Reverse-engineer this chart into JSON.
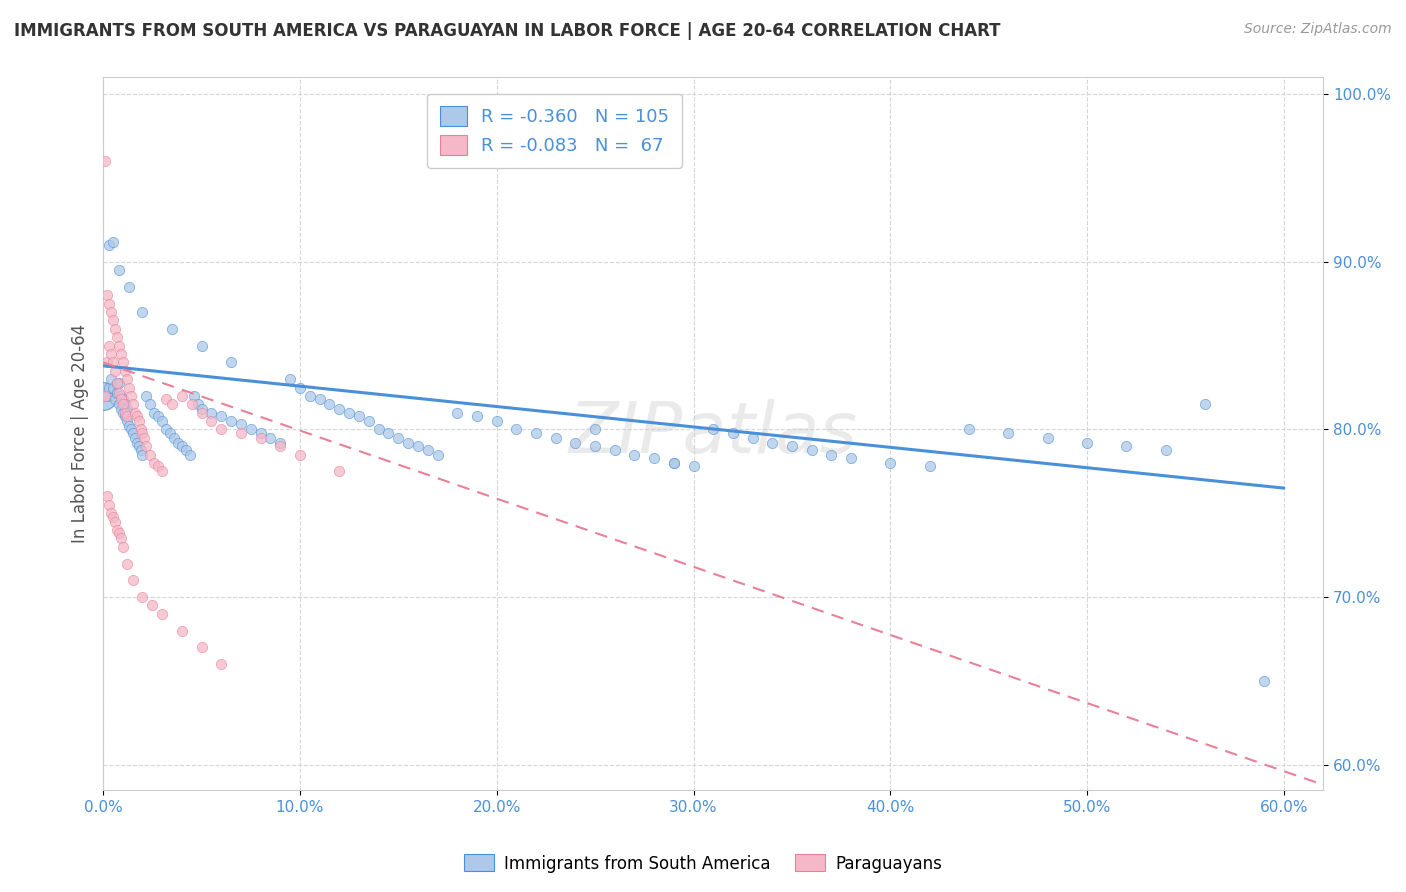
{
  "title": "IMMIGRANTS FROM SOUTH AMERICA VS PARAGUAYAN IN LABOR FORCE | AGE 20-64 CORRELATION CHART",
  "source": "Source: ZipAtlas.com",
  "ylabel": "In Labor Force | Age 20-64",
  "xlim": [
    0.0,
    0.62
  ],
  "ylim": [
    0.585,
    1.01
  ],
  "xticks": [
    0.0,
    0.1,
    0.2,
    0.3,
    0.4,
    0.5,
    0.6
  ],
  "xticklabels": [
    "0.0%",
    "10.0%",
    "20.0%",
    "30.0%",
    "40.0%",
    "50.0%",
    "60.0%"
  ],
  "yticks": [
    0.6,
    0.7,
    0.8,
    0.9,
    1.0
  ],
  "yticklabels": [
    "60.0%",
    "70.0%",
    "80.0%",
    "90.0%",
    "100.0%"
  ],
  "legend_labels": [
    "Immigrants from South America",
    "Paraguayans"
  ],
  "blue_color": "#adc8e8",
  "pink_color": "#f4b8c8",
  "blue_line_color": "#4a90d9",
  "pink_line_color": "#e88098",
  "title_color": "#333333",
  "grid_color": "#cccccc",
  "watermark_color": "#cccccc",
  "blue_scatter_x": [
    0.002,
    0.003,
    0.004,
    0.005,
    0.006,
    0.007,
    0.007,
    0.008,
    0.008,
    0.009,
    0.009,
    0.01,
    0.01,
    0.011,
    0.011,
    0.012,
    0.012,
    0.013,
    0.014,
    0.015,
    0.016,
    0.017,
    0.018,
    0.019,
    0.02,
    0.022,
    0.024,
    0.026,
    0.028,
    0.03,
    0.032,
    0.034,
    0.036,
    0.038,
    0.04,
    0.042,
    0.044,
    0.046,
    0.048,
    0.05,
    0.055,
    0.06,
    0.065,
    0.07,
    0.075,
    0.08,
    0.085,
    0.09,
    0.095,
    0.1,
    0.105,
    0.11,
    0.115,
    0.12,
    0.125,
    0.13,
    0.135,
    0.14,
    0.145,
    0.15,
    0.155,
    0.16,
    0.165,
    0.17,
    0.18,
    0.19,
    0.2,
    0.21,
    0.22,
    0.23,
    0.24,
    0.25,
    0.26,
    0.27,
    0.28,
    0.29,
    0.3,
    0.31,
    0.32,
    0.33,
    0.34,
    0.35,
    0.36,
    0.37,
    0.38,
    0.4,
    0.42,
    0.44,
    0.46,
    0.48,
    0.5,
    0.52,
    0.54,
    0.56,
    0.003,
    0.005,
    0.008,
    0.013,
    0.02,
    0.035,
    0.05,
    0.065,
    0.25,
    0.29,
    0.59
  ],
  "blue_scatter_y": [
    0.82,
    0.825,
    0.83,
    0.825,
    0.818,
    0.822,
    0.828,
    0.815,
    0.828,
    0.812,
    0.82,
    0.81,
    0.818,
    0.808,
    0.815,
    0.805,
    0.812,
    0.802,
    0.8,
    0.798,
    0.795,
    0.792,
    0.79,
    0.788,
    0.785,
    0.82,
    0.815,
    0.81,
    0.808,
    0.805,
    0.8,
    0.798,
    0.795,
    0.792,
    0.79,
    0.788,
    0.785,
    0.82,
    0.815,
    0.812,
    0.81,
    0.808,
    0.805,
    0.803,
    0.8,
    0.798,
    0.795,
    0.792,
    0.83,
    0.825,
    0.82,
    0.818,
    0.815,
    0.812,
    0.81,
    0.808,
    0.805,
    0.8,
    0.798,
    0.795,
    0.792,
    0.79,
    0.788,
    0.785,
    0.81,
    0.808,
    0.805,
    0.8,
    0.798,
    0.795,
    0.792,
    0.79,
    0.788,
    0.785,
    0.783,
    0.78,
    0.778,
    0.8,
    0.798,
    0.795,
    0.792,
    0.79,
    0.788,
    0.785,
    0.783,
    0.78,
    0.778,
    0.8,
    0.798,
    0.795,
    0.792,
    0.79,
    0.788,
    0.815,
    0.91,
    0.912,
    0.895,
    0.885,
    0.87,
    0.86,
    0.85,
    0.84,
    0.8,
    0.78,
    0.65
  ],
  "pink_scatter_x": [
    0.001,
    0.001,
    0.002,
    0.002,
    0.003,
    0.003,
    0.004,
    0.004,
    0.005,
    0.005,
    0.006,
    0.006,
    0.007,
    0.007,
    0.008,
    0.008,
    0.009,
    0.009,
    0.01,
    0.01,
    0.011,
    0.011,
    0.012,
    0.012,
    0.013,
    0.014,
    0.015,
    0.016,
    0.017,
    0.018,
    0.019,
    0.02,
    0.021,
    0.022,
    0.024,
    0.026,
    0.028,
    0.03,
    0.032,
    0.035,
    0.04,
    0.045,
    0.05,
    0.055,
    0.06,
    0.07,
    0.08,
    0.09,
    0.1,
    0.12,
    0.002,
    0.003,
    0.004,
    0.005,
    0.006,
    0.007,
    0.008,
    0.009,
    0.01,
    0.012,
    0.015,
    0.02,
    0.025,
    0.03,
    0.04,
    0.05,
    0.06
  ],
  "pink_scatter_y": [
    0.96,
    0.82,
    0.88,
    0.84,
    0.875,
    0.85,
    0.87,
    0.845,
    0.865,
    0.84,
    0.86,
    0.835,
    0.855,
    0.828,
    0.85,
    0.822,
    0.845,
    0.818,
    0.84,
    0.815,
    0.835,
    0.81,
    0.83,
    0.808,
    0.825,
    0.82,
    0.815,
    0.81,
    0.808,
    0.805,
    0.8,
    0.798,
    0.795,
    0.79,
    0.785,
    0.78,
    0.778,
    0.775,
    0.818,
    0.815,
    0.82,
    0.815,
    0.81,
    0.805,
    0.8,
    0.798,
    0.795,
    0.79,
    0.785,
    0.775,
    0.76,
    0.755,
    0.75,
    0.748,
    0.745,
    0.74,
    0.738,
    0.735,
    0.73,
    0.72,
    0.71,
    0.7,
    0.695,
    0.69,
    0.68,
    0.67,
    0.66
  ],
  "blue_line_x": [
    0.0,
    0.6
  ],
  "blue_line_y": [
    0.838,
    0.765
  ],
  "pink_line_x": [
    0.0,
    0.62
  ],
  "pink_line_y": [
    0.84,
    0.588
  ],
  "big_blue_x": [
    0.0
  ],
  "big_blue_y": [
    0.82
  ],
  "big_blue_size": 400
}
